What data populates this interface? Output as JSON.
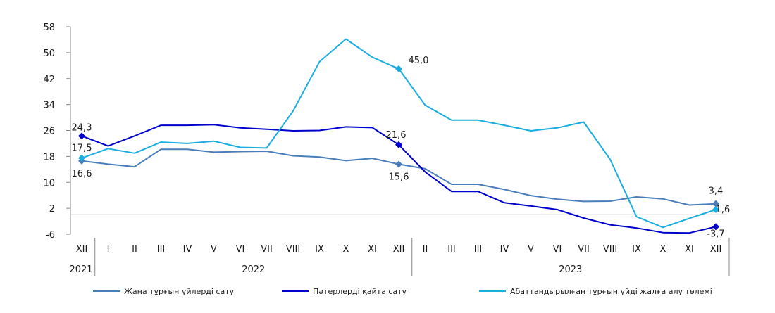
{
  "chart_data": {
    "type": "line",
    "title": "",
    "xlabel": "",
    "ylabel": "",
    "ylim": [
      -6,
      58
    ],
    "yticks": [
      -6,
      2,
      10,
      18,
      26,
      34,
      42,
      50,
      58
    ],
    "grid": false,
    "legend_position": "bottom",
    "categories": [
      "XII",
      "I",
      "II",
      "III",
      "IV",
      "V",
      "VI",
      "VII",
      "VIII",
      "IX",
      "X",
      "XI",
      "XII",
      "II",
      "III",
      "III",
      "IV",
      "V",
      "VI",
      "VII",
      "VIII",
      "IX",
      "X",
      "XI",
      "XII"
    ],
    "year_groups": [
      {
        "label": "2021",
        "start": 0,
        "end": 0
      },
      {
        "label": "2022",
        "start": 1,
        "end": 12
      },
      {
        "label": "2023",
        "start": 13,
        "end": 24
      }
    ],
    "series": [
      {
        "name": "Жаңа тұрғын үйлерді сату",
        "color": "#4a7ebb",
        "values": [
          16.6,
          15.6,
          14.8,
          20.2,
          20.2,
          19.3,
          19.5,
          19.6,
          18.2,
          17.8,
          16.7,
          17.4,
          15.6,
          14.2,
          9.4,
          9.4,
          7.8,
          5.9,
          4.8,
          4.1,
          4.2,
          5.5,
          4.9,
          3.0,
          3.4
        ],
        "labels": [
          {
            "index": 0,
            "text": "16,6"
          },
          {
            "index": 12,
            "text": "15,6"
          },
          {
            "index": 24,
            "text": "3,4"
          }
        ]
      },
      {
        "name": "Пәтерлерді қайта сату",
        "color": "#0000cc",
        "values": [
          24.3,
          21.2,
          24.3,
          27.6,
          27.6,
          27.8,
          26.8,
          26.4,
          25.9,
          26.0,
          27.1,
          26.9,
          21.6,
          13.2,
          7.2,
          7.2,
          3.7,
          2.7,
          1.6,
          -1.0,
          -3.1,
          -4.1,
          -5.5,
          -5.6,
          -3.7
        ],
        "labels": [
          {
            "index": 0,
            "text": "24,3"
          },
          {
            "index": 12,
            "text": "21,6"
          },
          {
            "index": 24,
            "text": "-3,7"
          }
        ]
      },
      {
        "name": "Абаттандырылған тұрғын үйді жалға алу төлемі",
        "color": "#1aade0",
        "values": [
          17.5,
          20.4,
          19.0,
          22.4,
          22.0,
          22.7,
          20.8,
          20.6,
          32.0,
          47.2,
          54.2,
          48.6,
          45.0,
          33.8,
          29.2,
          29.2,
          27.6,
          25.9,
          26.8,
          28.6,
          17.1,
          -0.6,
          -3.9,
          -1.1,
          1.6
        ],
        "labels": [
          {
            "index": 0,
            "text": "17,5"
          },
          {
            "index": 12,
            "text": "45,0"
          },
          {
            "index": 24,
            "text": "1,6"
          }
        ]
      }
    ]
  }
}
